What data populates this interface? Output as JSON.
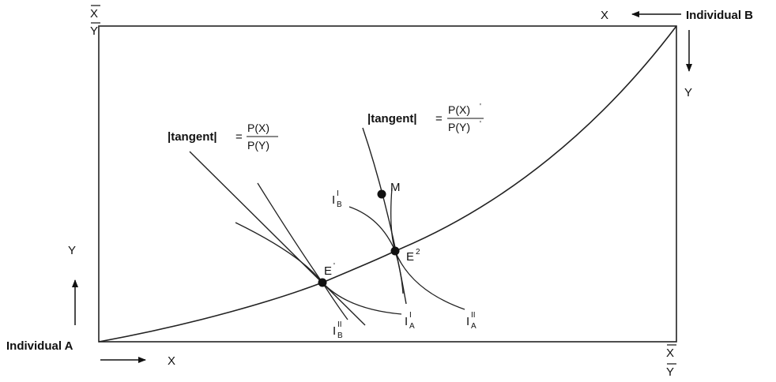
{
  "corner_top_left": {
    "x": "X",
    "y": "Y"
  },
  "corner_bottom_right": {
    "x": "X",
    "y": "Y"
  },
  "individual_a": {
    "label": "Individual A",
    "x_axis": "X",
    "y_axis": "Y"
  },
  "individual_b": {
    "label": "Individual B",
    "x_axis": "X",
    "y_axis": "Y"
  },
  "tangent1": {
    "label": "|tangent|",
    "equals": "=",
    "numerator": "P(X)",
    "denominator": "P(Y)"
  },
  "tangent2": {
    "label": "|tangent|",
    "equals": "=",
    "numerator": "P(X)",
    "denominator": "P(Y)",
    "prime": "'"
  },
  "points": {
    "m": "M",
    "e1": {
      "base": "E",
      "sup": "'"
    },
    "e2": {
      "base": "E",
      "sup": "2"
    }
  },
  "indifference": {
    "ib_upper": {
      "base": "I",
      "sup": "I",
      "sub": "B"
    },
    "ib_lower": {
      "base": "I",
      "sup": "II",
      "sub": "B"
    },
    "ia_mid": {
      "base": "I",
      "sup": "I",
      "sub": "A"
    },
    "ia_right": {
      "base": "I",
      "sup": "II",
      "sub": "A"
    }
  }
}
